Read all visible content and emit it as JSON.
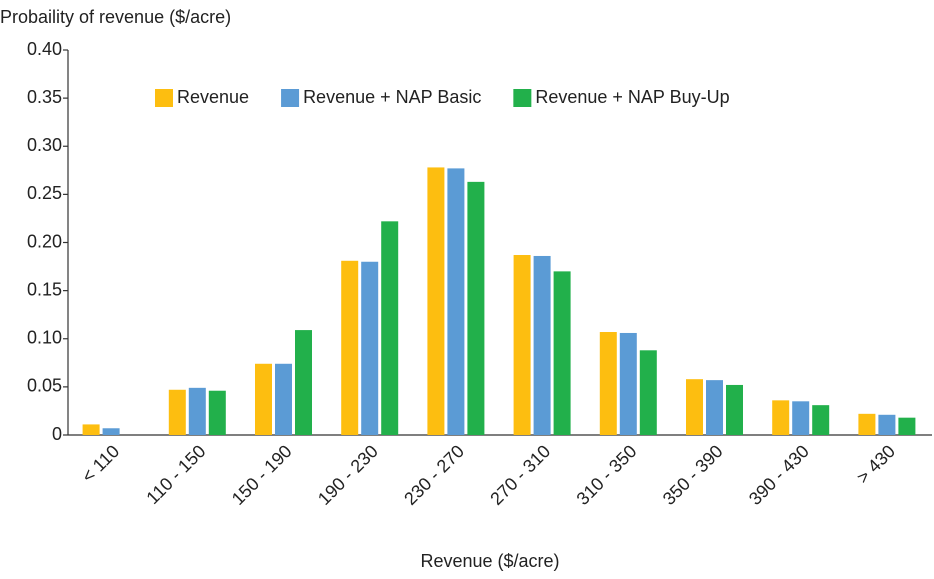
{
  "chart_data": {
    "type": "bar",
    "y_label": "Probaility of revenue ($/acre)",
    "x_label": "Revenue ($/acre)",
    "categories": [
      "< 110",
      "110 - 150",
      "150 - 190",
      "190 - 230",
      "230 - 270",
      "270 - 310",
      "310 - 350",
      "350 - 390",
      "390 - 430",
      "> 430"
    ],
    "series": [
      {
        "name": "Revenue",
        "color": "#fdbe10",
        "values": [
          0.011,
          0.047,
          0.074,
          0.181,
          0.278,
          0.187,
          0.107,
          0.058,
          0.036,
          0.022
        ]
      },
      {
        "name": "Revenue + NAP Basic",
        "color": "#5b9bd5",
        "values": [
          0.007,
          0.049,
          0.074,
          0.18,
          0.277,
          0.186,
          0.106,
          0.057,
          0.035,
          0.021
        ]
      },
      {
        "name": "Revenue + NAP Buy-Up",
        "color": "#22b04b",
        "values": [
          0,
          0.046,
          0.109,
          0.222,
          0.263,
          0.17,
          0.088,
          0.052,
          0.031,
          0.018
        ]
      }
    ],
    "ylim": [
      0,
      0.4
    ],
    "yticks": [
      0,
      0.05,
      {
        "value": 0.1,
        "label": "0.10"
      },
      0.15,
      {
        "value": 0.2,
        "label": "0.20"
      },
      0.25,
      {
        "value": 0.3,
        "label": "0.30"
      },
      0.35,
      {
        "value": 0.4,
        "label": "0.40"
      }
    ],
    "legend": "top"
  }
}
